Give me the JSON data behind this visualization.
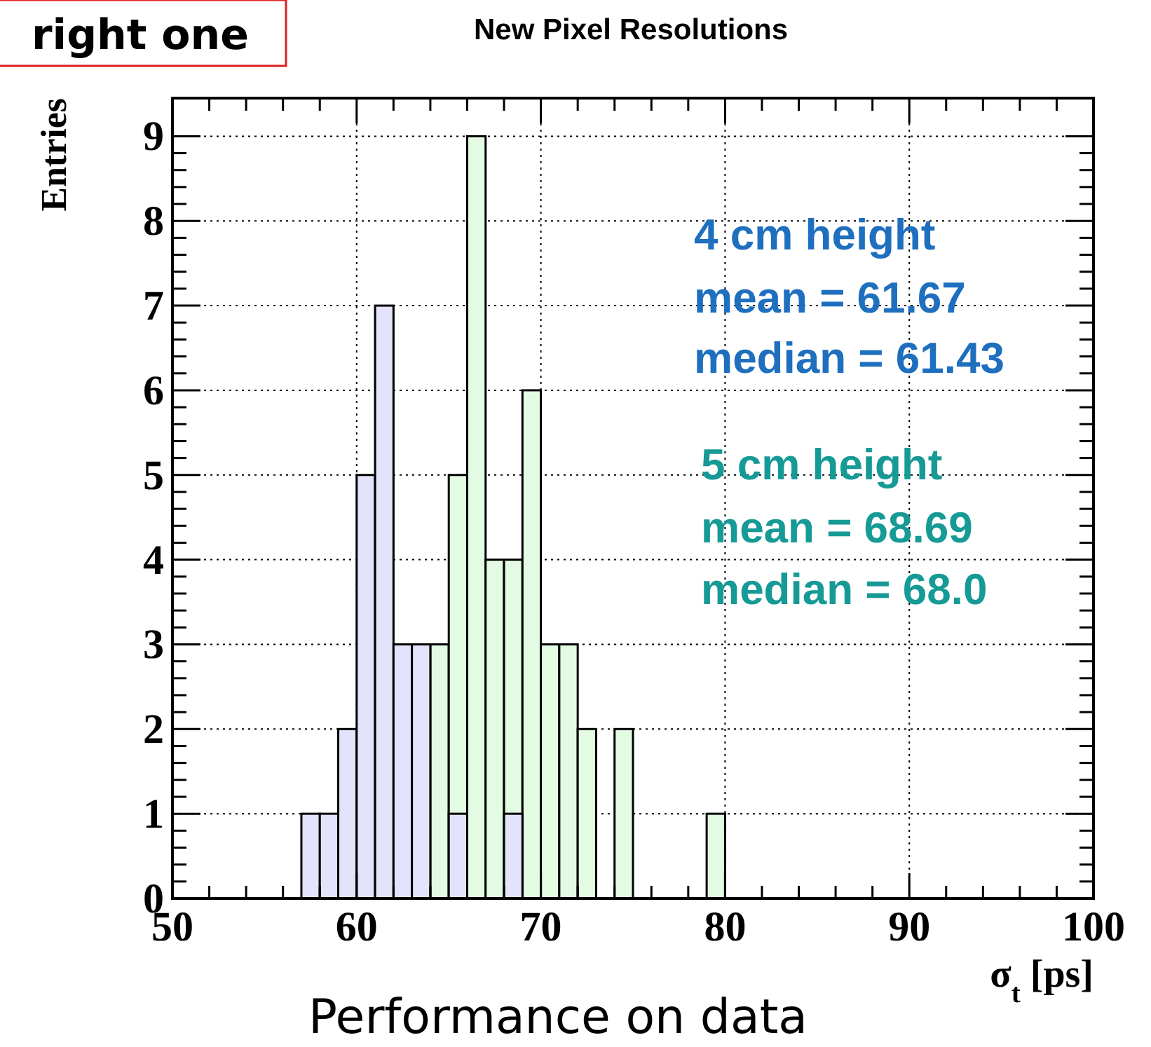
{
  "chart_data": {
    "type": "histogram",
    "title": "New Pixel Resolutions",
    "xlabel": "σ$_{t}$ [ps]",
    "ylabel": "Entries",
    "bins": [
      57,
      58,
      59,
      60,
      61,
      62,
      63,
      64,
      65,
      66,
      67,
      68,
      69,
      70,
      71,
      72,
      73,
      74,
      75,
      76,
      77,
      78,
      79,
      80
    ],
    "series": [
      {
        "color": "#e3fbe3",
        "values": [
          0,
          0,
          0,
          0,
          0,
          0,
          0,
          3,
          5,
          9,
          4,
          4,
          6,
          3,
          3,
          2,
          0,
          2,
          0,
          0,
          0,
          0,
          1
        ]
      },
      {
        "color": "#e3e3fb",
        "values": [
          1,
          1,
          2,
          5,
          7,
          3,
          3,
          0,
          1,
          0,
          0,
          1,
          0,
          0,
          0,
          0,
          0,
          0,
          0,
          0,
          0,
          0,
          0
        ]
      }
    ],
    "xlim": [
      50,
      100
    ],
    "xticks": [
      50,
      60,
      70,
      80,
      90,
      100
    ],
    "ylim": [
      0,
      9.45
    ],
    "yticks": [
      0,
      1,
      2,
      3,
      4,
      5,
      6,
      7,
      8,
      9
    ],
    "grid": true,
    "annotations": [
      "right one",
      "4 cm height",
      "mean = 61.67",
      "median = 61.43",
      "5 cm height",
      "mean = 68.69",
      "median = 68.0",
      "Performance on data"
    ]
  }
}
